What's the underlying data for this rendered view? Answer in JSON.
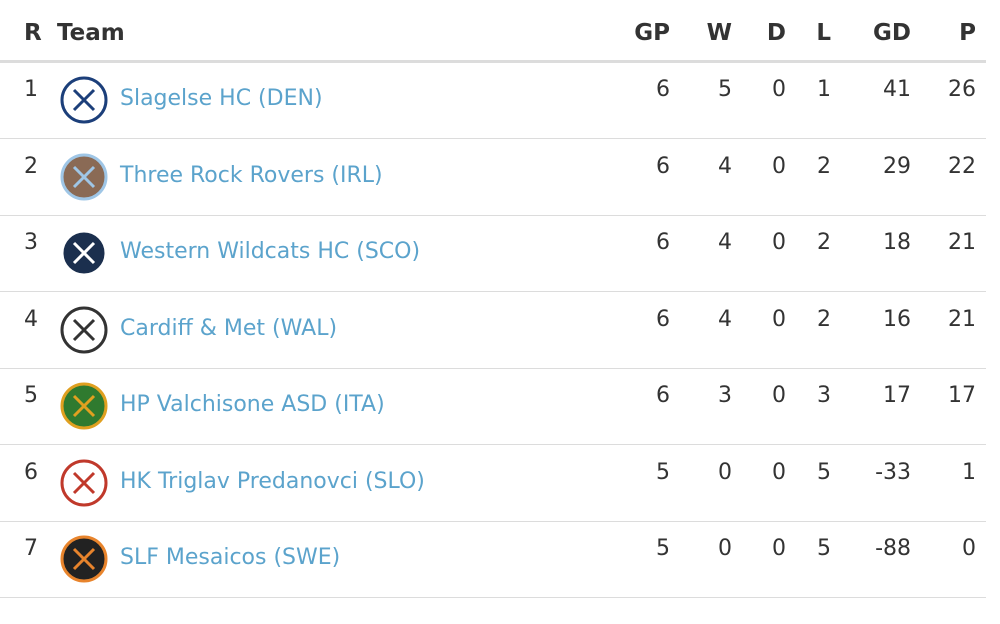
{
  "table": {
    "columns": [
      "R",
      "Team",
      "GP",
      "W",
      "D",
      "L",
      "GD",
      "P"
    ],
    "rows": [
      [
        1,
        "Slagelse HC (DEN)",
        6,
        5,
        0,
        1,
        41,
        26
      ],
      [
        2,
        "Three Rock Rovers (IRL)",
        6,
        4,
        0,
        2,
        29,
        22
      ],
      [
        3,
        "Western Wildcats HC (SCO)",
        6,
        4,
        0,
        2,
        18,
        21
      ],
      [
        4,
        "Cardiff & Met (WAL)",
        6,
        4,
        0,
        2,
        16,
        21
      ],
      [
        5,
        "HP Valchisone ASD (ITA)",
        6,
        3,
        0,
        3,
        17,
        17
      ],
      [
        6,
        "HK Triglav Predanovci (SLO)",
        5,
        0,
        0,
        5,
        -33,
        1
      ],
      [
        7,
        "SLF Mesaicos (SWE)",
        5,
        0,
        0,
        5,
        -88,
        0
      ]
    ]
  }
}
